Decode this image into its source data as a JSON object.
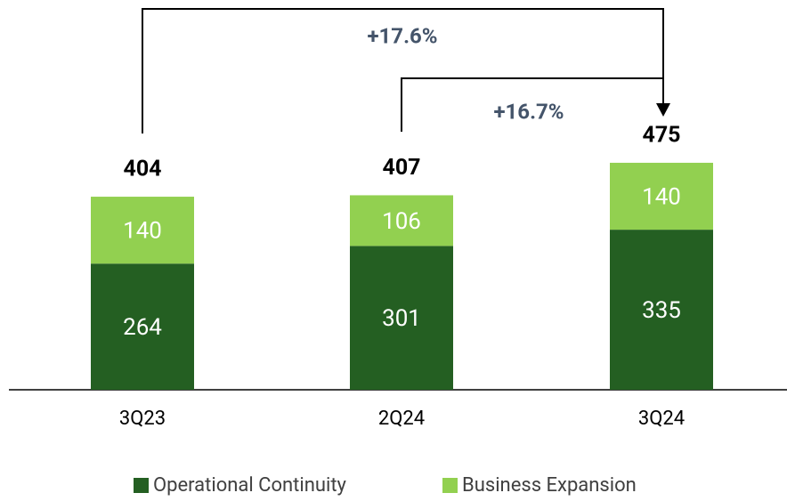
{
  "chart_data": {
    "type": "stacked_bar",
    "categories": [
      "3Q23",
      "2Q24",
      "3Q24"
    ],
    "series": [
      {
        "name": "Operational Continuity",
        "color": "#245f22",
        "values": [
          264,
          301,
          335
        ]
      },
      {
        "name": "Business Expansion",
        "color": "#92d050",
        "values": [
          140,
          106,
          140
        ]
      }
    ],
    "totals": [
      404,
      407,
      475
    ],
    "annotations": [
      "+17.6%",
      "+16.7%"
    ]
  }
}
